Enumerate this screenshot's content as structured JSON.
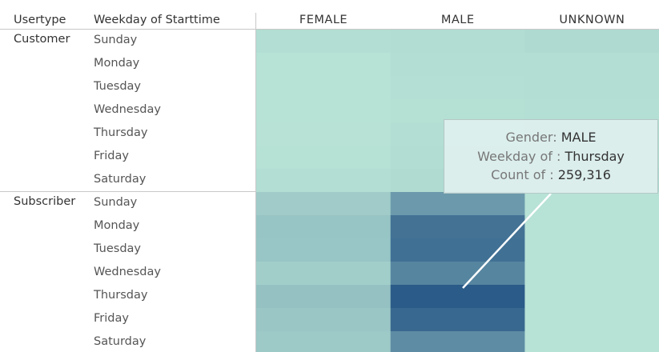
{
  "headers": {
    "usertype": "Usertype",
    "weekday": "Weekday of Starttime"
  },
  "chart_data": {
    "type": "heatmap",
    "columns": [
      "FEMALE",
      "MALE",
      "UNKNOWN"
    ],
    "row_groups": [
      {
        "name": "Customer",
        "rows": [
          {
            "weekday": "Sunday",
            "values": [
              9000,
              12000,
              18000
            ]
          },
          {
            "weekday": "Monday",
            "values": [
              1000,
              9000,
              10000
            ]
          },
          {
            "weekday": "Tuesday",
            "values": [
              1000,
              8000,
              9000
            ]
          },
          {
            "weekday": "Wednesday",
            "values": [
              1000,
              6000,
              7000
            ]
          },
          {
            "weekday": "Thursday",
            "values": [
              2000,
              10000,
              12000
            ]
          },
          {
            "weekday": "Friday",
            "values": [
              3000,
              12000,
              13000
            ]
          },
          {
            "weekday": "Saturday",
            "values": [
              10000,
              16000,
              20000
            ]
          }
        ]
      },
      {
        "name": "Subscriber",
        "rows": [
          {
            "weekday": "Sunday",
            "values": [
              45000,
              140000,
              1000
            ]
          },
          {
            "weekday": "Monday",
            "values": [
              60000,
              215000,
              1000
            ]
          },
          {
            "weekday": "Tuesday",
            "values": [
              58000,
              220000,
              1000
            ]
          },
          {
            "weekday": "Wednesday",
            "values": [
              40000,
              180000,
              1000
            ]
          },
          {
            "weekday": "Thursday",
            "values": [
              65000,
              259316,
              1000
            ]
          },
          {
            "weekday": "Friday",
            "values": [
              55000,
              235000,
              1000
            ]
          },
          {
            "weekday": "Saturday",
            "values": [
              50000,
              165000,
              1000
            ]
          }
        ]
      }
    ],
    "color_scale": {
      "low": "#b8e3d6",
      "high": "#2b5b88"
    }
  },
  "tooltip": {
    "gender_label": "Gender:",
    "gender_value": "MALE",
    "weekday_label": "Weekday of :",
    "weekday_value": "Thursday",
    "count_label": "Count of :",
    "count_value": "259,316"
  }
}
